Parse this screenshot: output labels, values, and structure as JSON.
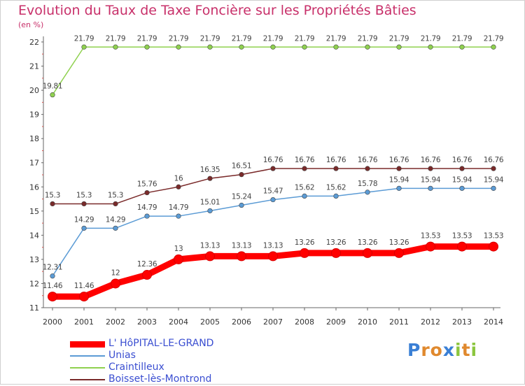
{
  "title": "Evolution du Taux de Taxe Foncière sur les Propriétés Bâties",
  "subtitle": "(en %)",
  "logo": {
    "text": "Proxiti",
    "letters": [
      "P",
      "r",
      "o",
      "x",
      "i",
      "t",
      "i"
    ],
    "colors": [
      "#3a7fd5",
      "#e0892e",
      "#e0892e",
      "#3a7fd5",
      "#8cc63f",
      "#e0892e",
      "#8cc63f"
    ]
  },
  "chart_data": {
    "type": "line",
    "x": [
      "2000",
      "2001",
      "2002",
      "2003",
      "2004",
      "2005",
      "2006",
      "2007",
      "2008",
      "2009",
      "2010",
      "2011",
      "2012",
      "2013",
      "2014"
    ],
    "ylim": [
      11,
      22
    ],
    "yticks": [
      11,
      12,
      13,
      14,
      15,
      16,
      17,
      18,
      19,
      20,
      21,
      22
    ],
    "grid": false,
    "legend_position": "bottom-left",
    "series": [
      {
        "name": "L' HôPITAL-LE-GRAND",
        "color": "#ff0000",
        "values": [
          11.46,
          11.46,
          12,
          12.36,
          13,
          13.13,
          13.13,
          13.13,
          13.26,
          13.26,
          13.26,
          13.26,
          13.53,
          13.53,
          13.53
        ],
        "labels": [
          "11.46",
          "11.46",
          "12",
          "12.36",
          "13",
          "13.13",
          "13.13",
          "13.13",
          "13.26",
          "13.26",
          "13.26",
          "13.26",
          "13.53",
          "13.53",
          "13.53"
        ]
      },
      {
        "name": "Unias",
        "color": "#5b9bd5",
        "values": [
          12.31,
          14.29,
          14.29,
          14.79,
          14.79,
          15.01,
          15.24,
          15.47,
          15.62,
          15.62,
          15.78,
          15.94,
          15.94,
          15.94,
          15.94
        ],
        "labels": [
          "12.31",
          "14.29",
          "14.29",
          "14.79",
          "14.79",
          "15.01",
          "15.24",
          "15.47",
          "15.62",
          "15.62",
          "15.78",
          "15.94",
          "15.94",
          "15.94",
          "15.94"
        ]
      },
      {
        "name": "Craintilleux",
        "color": "#8fd14f",
        "values": [
          19.81,
          21.79,
          21.79,
          21.79,
          21.79,
          21.79,
          21.79,
          21.79,
          21.79,
          21.79,
          21.79,
          21.79,
          21.79,
          21.79,
          21.79
        ],
        "labels": [
          "19.81",
          "21.79",
          "21.79",
          "21.79",
          "21.79",
          "21.79",
          "21.79",
          "21.79",
          "21.79",
          "21.79",
          "21.79",
          "21.79",
          "21.79",
          "21.79",
          "21.79"
        ]
      },
      {
        "name": "Boisset-lès-Montrond",
        "color": "#7a2a2a",
        "values": [
          15.3,
          15.3,
          15.3,
          15.76,
          16,
          16.35,
          16.51,
          16.76,
          16.76,
          16.76,
          16.76,
          16.76,
          16.76,
          16.76,
          16.76
        ],
        "labels": [
          "15.3",
          "15.3",
          "15.3",
          "15.76",
          "16",
          "16.35",
          "16.51",
          "16.76",
          "16.76",
          "16.76",
          "16.76",
          "16.76",
          "16.76",
          "16.76",
          "16.76"
        ]
      }
    ]
  }
}
